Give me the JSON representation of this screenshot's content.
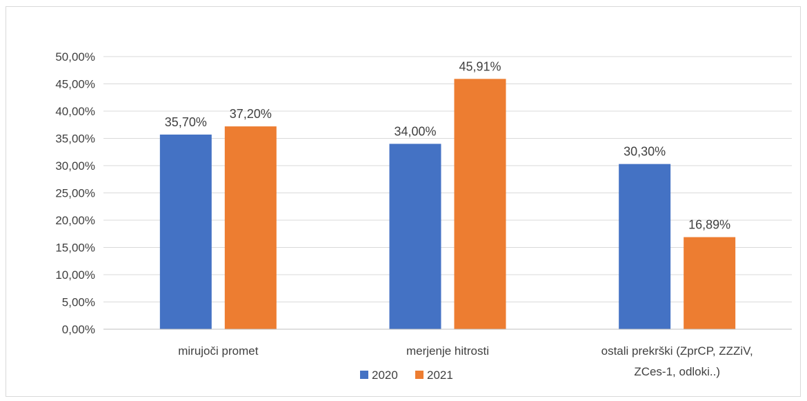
{
  "chart_data": {
    "type": "bar",
    "categories": [
      [
        "mirujoči promet"
      ],
      [
        "merjenje hitrosti"
      ],
      [
        "ostali prekrški (ZprCP, ZZZiV,",
        "ZCes-1, odloki..)"
      ]
    ],
    "series": [
      {
        "name": "2020",
        "color": "#4472c4",
        "values": [
          35.7,
          34.0,
          30.3
        ],
        "labels": [
          "35,70%",
          "34,00%",
          "30,30%"
        ]
      },
      {
        "name": "2021",
        "color": "#ed7d31",
        "values": [
          37.2,
          45.91,
          16.89
        ],
        "labels": [
          "37,20%",
          "45,91%",
          "16,89%"
        ]
      }
    ],
    "yticks": [
      "0,00%",
      "5,00%",
      "10,00%",
      "15,00%",
      "20,00%",
      "25,00%",
      "30,00%",
      "35,00%",
      "40,00%",
      "45,00%",
      "50,00%"
    ],
    "ylim": [
      0,
      50
    ],
    "ystep": 5,
    "grid": true,
    "gridColor": "#d9d9d9",
    "legend": "bottom-center",
    "title": "",
    "xlabel": "",
    "ylabel": ""
  }
}
